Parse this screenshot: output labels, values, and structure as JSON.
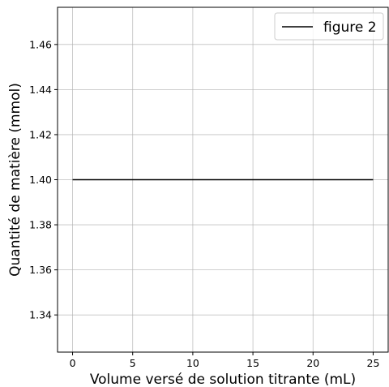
{
  "chart_data": {
    "type": "line",
    "xlabel": "Volume versé de solution titrante (mL)",
    "ylabel": "Quantité de matière (mmol)",
    "xlim": [
      -1.25,
      26.25
    ],
    "ylim": [
      1.3235,
      1.4765
    ],
    "xticks": [
      0,
      5,
      10,
      15,
      20,
      25
    ],
    "xtick_labels": [
      "0",
      "5",
      "10",
      "15",
      "20",
      "25"
    ],
    "yticks": [
      1.34,
      1.36,
      1.38,
      1.4,
      1.42,
      1.44,
      1.46
    ],
    "ytick_labels": [
      "1.34",
      "1.36",
      "1.38",
      "1.40",
      "1.42",
      "1.44",
      "1.46"
    ],
    "grid": true,
    "legend_position": "top-right",
    "series": [
      {
        "name": "figure 2",
        "color": "#000000",
        "x": [
          0,
          25
        ],
        "y": [
          1.4,
          1.4
        ]
      }
    ]
  }
}
